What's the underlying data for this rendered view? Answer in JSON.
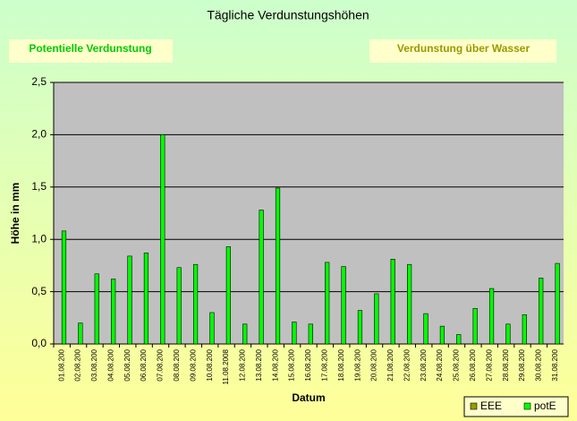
{
  "chart_data": {
    "type": "bar",
    "title": "Tägliche Verdunstungshöhen",
    "annotations": [
      "Potentielle Verdunstung",
      "Verdunstung über Wasser"
    ],
    "ylabel": "Höhe in mm",
    "xlabel": "Datum",
    "categories": [
      "01.08.200",
      "02.08.200",
      "03.08.200",
      "04.08.200",
      "05.08.200",
      "06.08.200",
      "07.08.200",
      "08.08.200",
      "09.08.200",
      "10.08.200",
      "11.08.2008",
      "12.08.200",
      "13.08.200",
      "14.08.200",
      "15.08.200",
      "16.08.200",
      "17.08.200",
      "18.08.200",
      "19.08.200",
      "20.08.200",
      "21.08.200",
      "22.08.200",
      "23.08.200",
      "24.08.200",
      "25.08.200",
      "26.08.200",
      "27.08.200",
      "28.08.200",
      "29.08.200",
      "30.08.200",
      "31.08.200"
    ],
    "series": [
      {
        "name": "EEE",
        "color": "#999900",
        "values": [
          null,
          null,
          null,
          null,
          null,
          null,
          null,
          null,
          null,
          null,
          null,
          null,
          null,
          null,
          null,
          null,
          null,
          null,
          null,
          null,
          null,
          null,
          null,
          null,
          null,
          null,
          null,
          null,
          null,
          null,
          null
        ]
      },
      {
        "name": "potE",
        "color": "#00ff00",
        "values": [
          1.08,
          0.2,
          0.67,
          0.62,
          0.84,
          0.87,
          2.0,
          0.73,
          0.76,
          0.3,
          0.93,
          0.19,
          1.28,
          1.49,
          0.21,
          0.19,
          0.78,
          0.74,
          0.32,
          0.48,
          0.81,
          0.76,
          0.29,
          0.17,
          0.09,
          0.34,
          0.53,
          0.19,
          0.28,
          0.63,
          0.77
        ]
      }
    ],
    "ylim": [
      0,
      2.5
    ],
    "yticks": [
      {
        "value": 0,
        "label": "0,0"
      },
      {
        "value": 0.5,
        "label": "0,5"
      },
      {
        "value": 1,
        "label": "1,0"
      },
      {
        "value": 1.5,
        "label": "1,5"
      },
      {
        "value": 2,
        "label": "2,0"
      },
      {
        "value": 2.5,
        "label": "2,5"
      }
    ],
    "grid": true,
    "legend": "bottom-right"
  }
}
